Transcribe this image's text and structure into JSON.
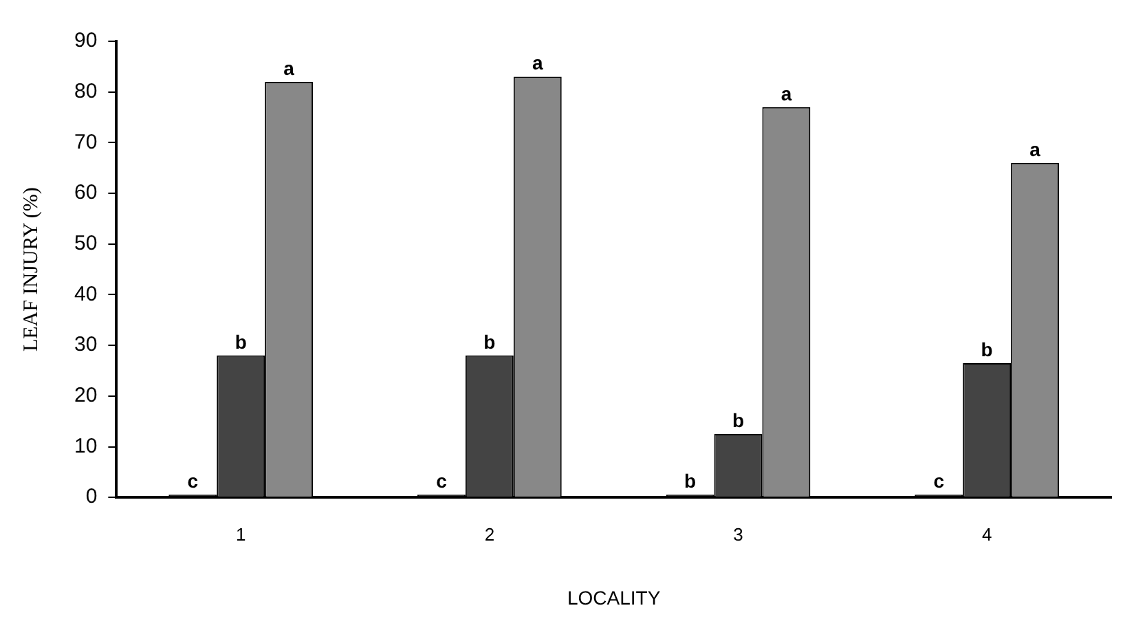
{
  "chart_data": {
    "type": "bar",
    "xlabel": "LOCALITY",
    "ylabel": "LEAF INJURY (%)",
    "categories": [
      "1",
      "2",
      "3",
      "4"
    ],
    "series": [
      {
        "color": "#000000",
        "values": [
          0,
          0,
          0,
          0
        ],
        "value_labels": [
          "c",
          "c",
          "b",
          "c"
        ]
      },
      {
        "color": "#444444",
        "values": [
          28,
          28,
          12.5,
          26.5
        ],
        "value_labels": [
          "b",
          "b",
          "b",
          "b"
        ]
      },
      {
        "color": "#888888",
        "values": [
          82,
          83,
          77,
          66
        ],
        "value_labels": [
          "a",
          "a",
          "a",
          "a"
        ]
      }
    ],
    "ylim": [
      0,
      90
    ],
    "yticks": [
      0,
      10,
      20,
      30,
      40,
      50,
      60,
      70,
      80,
      90
    ],
    "grid": false,
    "legend": false
  }
}
